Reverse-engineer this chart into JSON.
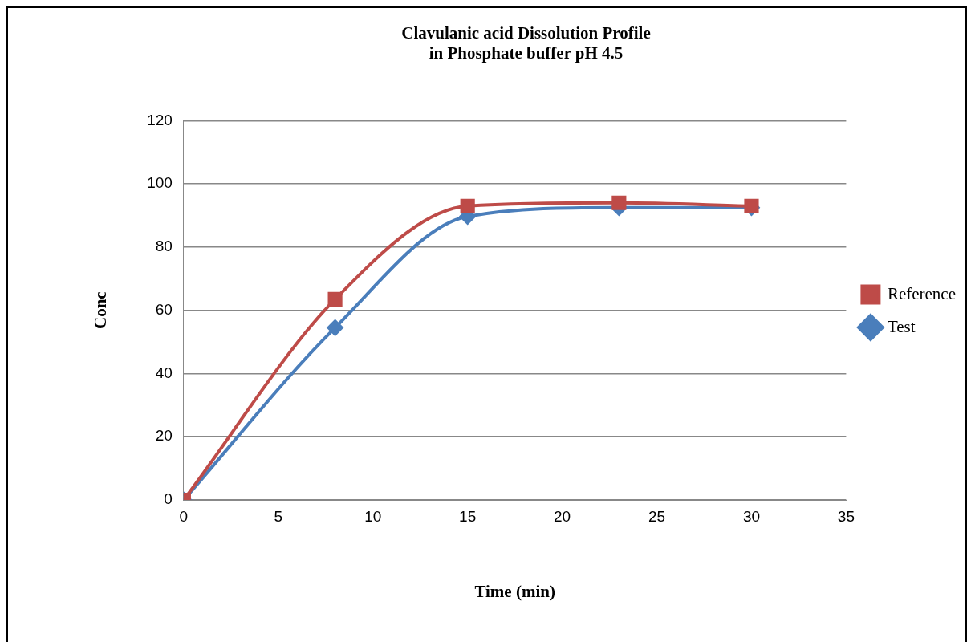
{
  "chart_data": {
    "type": "line",
    "title": "Clavulanic acid Dissolution Profile\nin Phosphate buffer pH 4.5",
    "xlabel": "Time (min)",
    "ylabel": "Conc",
    "x": [
      0,
      8,
      15,
      23,
      30
    ],
    "series": [
      {
        "name": "Test",
        "color": "#4a7ebb",
        "marker": "diamond",
        "values": [
          0,
          54.5,
          89.7,
          92.5,
          92.5
        ]
      },
      {
        "name": "Reference",
        "color": "#be4b48",
        "marker": "square",
        "values": [
          0,
          63.5,
          93,
          94,
          93
        ]
      }
    ],
    "xlim": [
      0,
      35
    ],
    "xticks": [
      0,
      5,
      10,
      15,
      20,
      25,
      30,
      35
    ],
    "ylim": [
      0,
      120
    ],
    "yticks": [
      0,
      20,
      40,
      60,
      80,
      100,
      120
    ],
    "grid": "y",
    "legend": "right",
    "line_style": "solid"
  }
}
